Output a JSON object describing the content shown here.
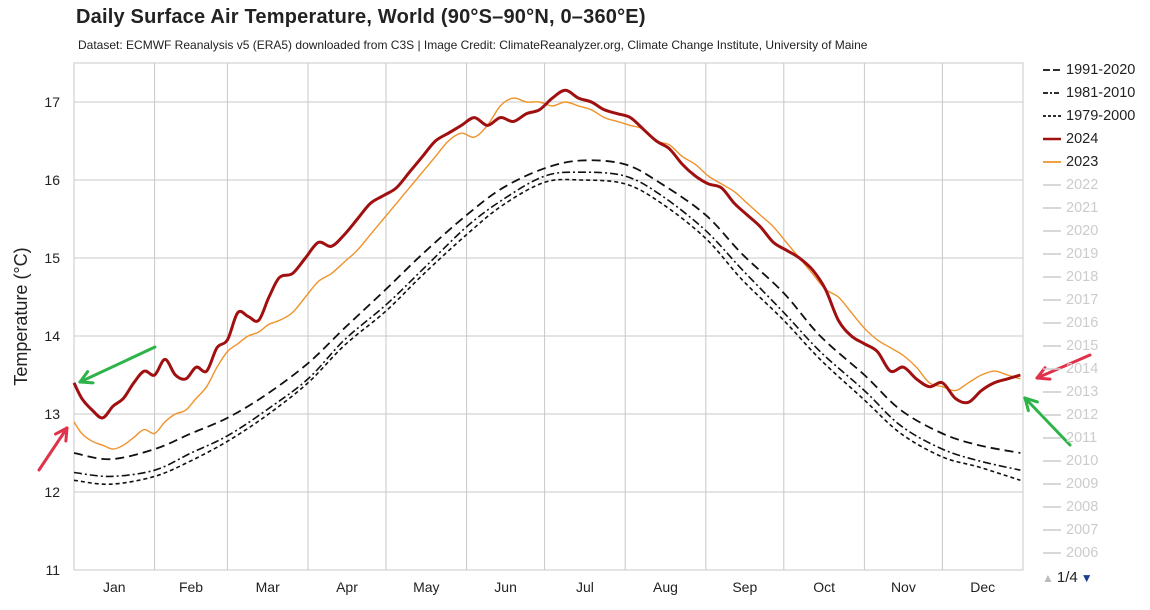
{
  "title": "Daily Surface Air Temperature, World (90°S–90°N, 0–360°E)",
  "subtitle": "Dataset: ECMWF Reanalysis v5 (ERA5) downloaded from C3S | Image Credit: ClimateReanalyzer.org, Climate Change Institute, University of Maine",
  "pager": {
    "up_icon": "▲",
    "label": "1/4",
    "down_icon": "▼"
  },
  "colors": {
    "grid": "#c8c8c8",
    "y2024": "#a01010",
    "y2023": "#f0922a",
    "mean": "#111111",
    "inactive": "#cccccc"
  },
  "chart_data": {
    "type": "line",
    "title": "Daily Surface Air Temperature, World (90°S–90°N, 0–360°E)",
    "ylabel": "Temperature (°C)",
    "xlabel": "",
    "ylim": [
      11,
      17.5
    ],
    "yticks": [
      11,
      12,
      13,
      14,
      15,
      16,
      17
    ],
    "xlim": [
      1,
      366
    ],
    "months": [
      "Jan",
      "Feb",
      "Mar",
      "Apr",
      "May",
      "Jun",
      "Jul",
      "Aug",
      "Sep",
      "Oct",
      "Nov",
      "Dec"
    ],
    "grid": true,
    "legend_position": "right",
    "series": [
      {
        "name": "1991-2020",
        "style": "long-dash",
        "color": "#111111",
        "x": [
          1,
          15,
          32,
          46,
          60,
          75,
          91,
          105,
          121,
          135,
          152,
          166,
          182,
          196,
          213,
          227,
          244,
          258,
          274,
          288,
          305,
          319,
          335,
          349,
          365
        ],
        "y": [
          12.5,
          12.42,
          12.55,
          12.75,
          12.95,
          13.25,
          13.65,
          14.1,
          14.6,
          15.05,
          15.55,
          15.9,
          16.15,
          16.25,
          16.2,
          15.95,
          15.55,
          15.05,
          14.55,
          14.0,
          13.5,
          13.05,
          12.75,
          12.6,
          12.5
        ]
      },
      {
        "name": "1981-2010",
        "style": "dash-dot",
        "color": "#111111",
        "x": [
          1,
          15,
          32,
          46,
          60,
          75,
          91,
          105,
          121,
          135,
          152,
          166,
          182,
          196,
          213,
          227,
          244,
          258,
          274,
          288,
          305,
          319,
          335,
          349,
          365
        ],
        "y": [
          12.25,
          12.2,
          12.28,
          12.5,
          12.72,
          13.05,
          13.45,
          13.95,
          14.4,
          14.85,
          15.4,
          15.75,
          16.05,
          16.1,
          16.05,
          15.8,
          15.35,
          14.85,
          14.3,
          13.8,
          13.3,
          12.85,
          12.55,
          12.4,
          12.28
        ]
      },
      {
        "name": "1979-2000",
        "style": "short-dash",
        "color": "#111111",
        "x": [
          1,
          15,
          32,
          46,
          60,
          75,
          91,
          105,
          121,
          135,
          152,
          166,
          182,
          196,
          213,
          227,
          244,
          258,
          274,
          288,
          305,
          319,
          335,
          349,
          365
        ],
        "y": [
          12.15,
          12.1,
          12.2,
          12.4,
          12.65,
          12.98,
          13.4,
          13.88,
          14.32,
          14.78,
          15.3,
          15.68,
          15.97,
          16.0,
          15.95,
          15.7,
          15.25,
          14.72,
          14.2,
          13.7,
          13.18,
          12.75,
          12.45,
          12.32,
          12.15
        ]
      },
      {
        "name": "2024",
        "style": "solid-thick",
        "color": "#a01010",
        "x": [
          1,
          4,
          8,
          12,
          16,
          20,
          24,
          28,
          32,
          36,
          40,
          44,
          48,
          52,
          56,
          60,
          64,
          68,
          72,
          76,
          80,
          85,
          90,
          95,
          100,
          105,
          110,
          115,
          120,
          125,
          130,
          135,
          140,
          145,
          150,
          155,
          160,
          165,
          170,
          175,
          180,
          185,
          190,
          195,
          200,
          205,
          210,
          215,
          220,
          225,
          230,
          235,
          240,
          245,
          250,
          255,
          260,
          265,
          270,
          275,
          280,
          285,
          290,
          295,
          300,
          305,
          310,
          315,
          320,
          325,
          330,
          335,
          340,
          345,
          350,
          355,
          360,
          365
        ],
        "y": [
          13.4,
          13.2,
          13.05,
          12.95,
          13.1,
          13.2,
          13.4,
          13.55,
          13.5,
          13.7,
          13.5,
          13.45,
          13.6,
          13.55,
          13.85,
          13.95,
          14.3,
          14.25,
          14.2,
          14.5,
          14.75,
          14.8,
          15.0,
          15.2,
          15.15,
          15.3,
          15.5,
          15.7,
          15.8,
          15.9,
          16.1,
          16.3,
          16.5,
          16.6,
          16.7,
          16.8,
          16.7,
          16.8,
          16.75,
          16.85,
          16.9,
          17.05,
          17.15,
          17.05,
          17.0,
          16.9,
          16.85,
          16.8,
          16.65,
          16.5,
          16.4,
          16.2,
          16.05,
          15.95,
          15.9,
          15.7,
          15.55,
          15.4,
          15.2,
          15.1,
          15.0,
          14.85,
          14.6,
          14.2,
          14.0,
          13.9,
          13.8,
          13.55,
          13.6,
          13.45,
          13.35,
          13.4,
          13.2,
          13.15,
          13.3,
          13.4,
          13.45,
          13.5
        ]
      },
      {
        "name": "2023",
        "style": "solid-thin",
        "color": "#f0922a",
        "x": [
          1,
          4,
          8,
          12,
          16,
          20,
          24,
          28,
          32,
          36,
          40,
          44,
          48,
          52,
          56,
          60,
          64,
          68,
          72,
          76,
          80,
          85,
          90,
          95,
          100,
          105,
          110,
          115,
          120,
          125,
          130,
          135,
          140,
          145,
          150,
          155,
          160,
          165,
          170,
          175,
          180,
          185,
          190,
          195,
          200,
          205,
          210,
          215,
          220,
          225,
          230,
          235,
          240,
          245,
          250,
          255,
          260,
          265,
          270,
          275,
          280,
          285,
          290,
          295,
          300,
          305,
          310,
          315,
          320,
          325,
          330,
          335,
          340,
          345,
          350,
          355,
          360,
          365
        ],
        "y": [
          12.9,
          12.75,
          12.65,
          12.6,
          12.55,
          12.6,
          12.7,
          12.8,
          12.75,
          12.9,
          13.0,
          13.05,
          13.2,
          13.35,
          13.6,
          13.8,
          13.9,
          14.0,
          14.05,
          14.15,
          14.2,
          14.3,
          14.5,
          14.7,
          14.8,
          14.95,
          15.1,
          15.3,
          15.5,
          15.7,
          15.9,
          16.1,
          16.3,
          16.5,
          16.6,
          16.55,
          16.7,
          16.95,
          17.05,
          17.0,
          17.0,
          16.95,
          17.0,
          16.95,
          16.9,
          16.8,
          16.75,
          16.7,
          16.65,
          16.5,
          16.45,
          16.3,
          16.2,
          16.05,
          15.95,
          15.85,
          15.7,
          15.55,
          15.4,
          15.2,
          15.0,
          14.8,
          14.6,
          14.5,
          14.3,
          14.1,
          13.95,
          13.85,
          13.75,
          13.6,
          13.4,
          13.35,
          13.3,
          13.4,
          13.5,
          13.55,
          13.5,
          13.45
        ]
      }
    ],
    "legend": [
      {
        "label": "1991-2020",
        "style": "long-dash",
        "active": true
      },
      {
        "label": "1981-2010",
        "style": "dash-dot",
        "active": true
      },
      {
        "label": "1979-2000",
        "style": "short-dash",
        "active": true
      },
      {
        "label": "2024",
        "style": "solid-thick",
        "active": true
      },
      {
        "label": "2023",
        "style": "solid-thin",
        "active": true
      },
      {
        "label": "2022",
        "style": "solid",
        "active": false
      },
      {
        "label": "2021",
        "style": "solid",
        "active": false
      },
      {
        "label": "2020",
        "style": "solid",
        "active": false
      },
      {
        "label": "2019",
        "style": "solid",
        "active": false
      },
      {
        "label": "2018",
        "style": "solid",
        "active": false
      },
      {
        "label": "2017",
        "style": "solid",
        "active": false
      },
      {
        "label": "2016",
        "style": "solid",
        "active": false
      },
      {
        "label": "2015",
        "style": "solid",
        "active": false
      },
      {
        "label": "2014",
        "style": "solid",
        "active": false
      },
      {
        "label": "2013",
        "style": "solid",
        "active": false
      },
      {
        "label": "2012",
        "style": "solid",
        "active": false
      },
      {
        "label": "2011",
        "style": "solid",
        "active": false
      },
      {
        "label": "2010",
        "style": "solid",
        "active": false
      },
      {
        "label": "2009",
        "style": "solid",
        "active": false
      },
      {
        "label": "2008",
        "style": "solid",
        "active": false
      },
      {
        "label": "2007",
        "style": "solid",
        "active": false
      },
      {
        "label": "2006",
        "style": "solid",
        "active": false
      }
    ],
    "annotations": [
      {
        "type": "arrow",
        "color": "#2db34a",
        "points_to": "2024 start value (Jan)"
      },
      {
        "type": "arrow",
        "color": "#e0324a",
        "points_to": "2023 start value (Jan)"
      },
      {
        "type": "arrow",
        "color": "#e0324a",
        "points_to": "2023 end value (Dec)"
      },
      {
        "type": "arrow",
        "color": "#2db34a",
        "points_to": "2024 end value (Dec)"
      }
    ]
  }
}
